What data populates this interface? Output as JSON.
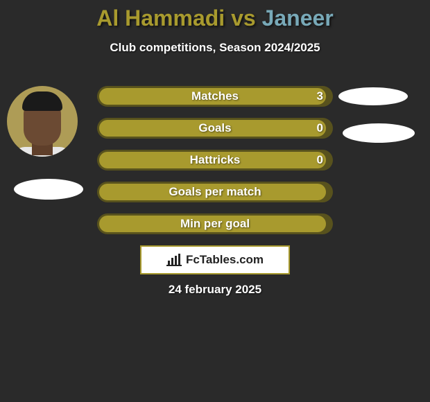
{
  "title": {
    "full": "Al Hammadi vs Janeer",
    "color_primary": "#a89a2e",
    "color_secondary": "#78a9b8"
  },
  "subtitle": "Club competitions, Season 2024/2025",
  "stats": {
    "row_bg": "#58521d",
    "fill_color": "#a89a2e",
    "text_color": "#ffffff",
    "fontsize": 17,
    "rows": [
      {
        "label": "Matches",
        "value": "3",
        "fill_pct": 98
      },
      {
        "label": "Goals",
        "value": "0",
        "fill_pct": 98
      },
      {
        "label": "Hattricks",
        "value": "0",
        "fill_pct": 98
      },
      {
        "label": "Goals per match",
        "value": "",
        "fill_pct": 98
      },
      {
        "label": "Min per goal",
        "value": "",
        "fill_pct": 98
      }
    ]
  },
  "brand": "FcTables.com",
  "date": "24 february 2025",
  "colors": {
    "background": "#2a2a2a",
    "brand_border": "#a89a2e",
    "white": "#ffffff"
  }
}
